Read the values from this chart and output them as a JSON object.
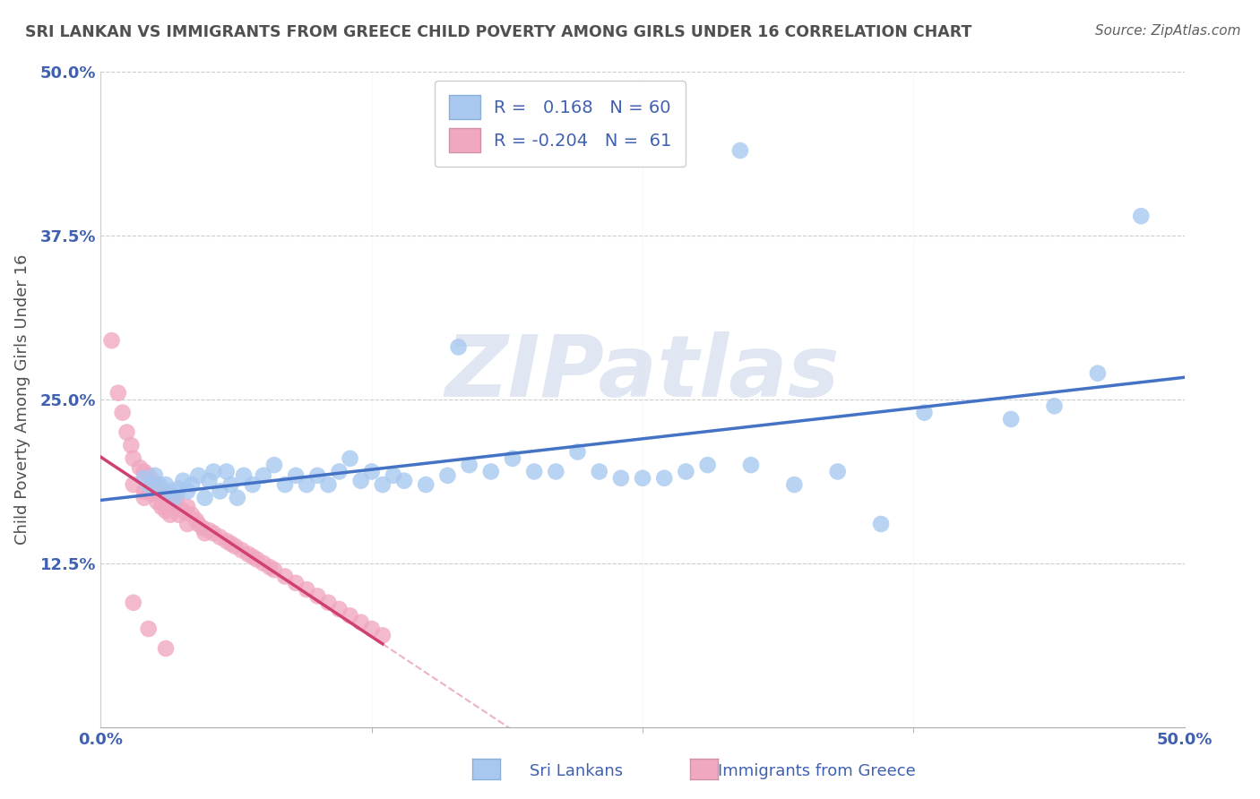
{
  "title": "SRI LANKAN VS IMMIGRANTS FROM GREECE CHILD POVERTY AMONG GIRLS UNDER 16 CORRELATION CHART",
  "source": "Source: ZipAtlas.com",
  "ylabel": "Child Poverty Among Girls Under 16",
  "xlim": [
    0.0,
    0.5
  ],
  "ylim": [
    0.0,
    0.5
  ],
  "ytick_labels": [
    "12.5%",
    "25.0%",
    "37.5%",
    "50.0%"
  ],
  "ytick_values": [
    0.125,
    0.25,
    0.375,
    0.5
  ],
  "xtick_values": [
    0.0,
    0.5
  ],
  "xtick_labels": [
    "0.0%",
    "50.0%"
  ],
  "extra_xtick_values": [
    0.125,
    0.25,
    0.375
  ],
  "legend_R1": "0.168",
  "legend_N1": "60",
  "legend_R2": "-0.204",
  "legend_N2": "61",
  "color_sri": "#a8c8f0",
  "color_greece": "#f0a8c0",
  "color_sri_line": "#4472c4",
  "color_greece_line": "#d04070",
  "watermark": "ZIPatlas",
  "watermark_color": "#c8d4e8",
  "background_color": "#ffffff",
  "title_color": "#505050",
  "label_color": "#4060b0",
  "sri_lankans_x": [
    0.02,
    0.022,
    0.025,
    0.027,
    0.03,
    0.032,
    0.034,
    0.036,
    0.038,
    0.04,
    0.042,
    0.045,
    0.048,
    0.05,
    0.052,
    0.055,
    0.058,
    0.06,
    0.063,
    0.066,
    0.07,
    0.075,
    0.08,
    0.085,
    0.09,
    0.095,
    0.1,
    0.105,
    0.11,
    0.115,
    0.12,
    0.125,
    0.13,
    0.135,
    0.14,
    0.15,
    0.16,
    0.17,
    0.18,
    0.19,
    0.2,
    0.21,
    0.22,
    0.23,
    0.24,
    0.25,
    0.26,
    0.27,
    0.28,
    0.3,
    0.32,
    0.34,
    0.36,
    0.38,
    0.42,
    0.44,
    0.46,
    0.48,
    0.165,
    0.295
  ],
  "sri_lankans_y": [
    0.19,
    0.185,
    0.192,
    0.185,
    0.185,
    0.18,
    0.175,
    0.182,
    0.188,
    0.18,
    0.185,
    0.192,
    0.175,
    0.188,
    0.195,
    0.18,
    0.195,
    0.185,
    0.175,
    0.192,
    0.185,
    0.192,
    0.2,
    0.185,
    0.192,
    0.185,
    0.192,
    0.185,
    0.195,
    0.205,
    0.188,
    0.195,
    0.185,
    0.192,
    0.188,
    0.185,
    0.192,
    0.2,
    0.195,
    0.205,
    0.195,
    0.195,
    0.21,
    0.195,
    0.19,
    0.19,
    0.19,
    0.195,
    0.2,
    0.2,
    0.185,
    0.195,
    0.155,
    0.24,
    0.235,
    0.245,
    0.27,
    0.39,
    0.29,
    0.44
  ],
  "greece_x": [
    0.005,
    0.008,
    0.01,
    0.012,
    0.014,
    0.015,
    0.015,
    0.018,
    0.02,
    0.02,
    0.02,
    0.022,
    0.023,
    0.024,
    0.025,
    0.025,
    0.026,
    0.028,
    0.028,
    0.03,
    0.03,
    0.03,
    0.032,
    0.033,
    0.034,
    0.035,
    0.036,
    0.038,
    0.04,
    0.04,
    0.042,
    0.044,
    0.045,
    0.047,
    0.048,
    0.05,
    0.052,
    0.055,
    0.058,
    0.06,
    0.062,
    0.065,
    0.068,
    0.07,
    0.072,
    0.075,
    0.078,
    0.08,
    0.085,
    0.09,
    0.095,
    0.1,
    0.105,
    0.11,
    0.115,
    0.12,
    0.125,
    0.13,
    0.015,
    0.022,
    0.03
  ],
  "greece_y": [
    0.295,
    0.255,
    0.24,
    0.225,
    0.215,
    0.205,
    0.185,
    0.198,
    0.195,
    0.18,
    0.175,
    0.192,
    0.178,
    0.188,
    0.178,
    0.185,
    0.172,
    0.178,
    0.168,
    0.178,
    0.165,
    0.175,
    0.162,
    0.172,
    0.168,
    0.175,
    0.162,
    0.165,
    0.168,
    0.155,
    0.162,
    0.158,
    0.155,
    0.152,
    0.148,
    0.15,
    0.148,
    0.145,
    0.142,
    0.14,
    0.138,
    0.135,
    0.132,
    0.13,
    0.128,
    0.125,
    0.122,
    0.12,
    0.115,
    0.11,
    0.105,
    0.1,
    0.095,
    0.09,
    0.085,
    0.08,
    0.075,
    0.07,
    0.095,
    0.075,
    0.06
  ]
}
